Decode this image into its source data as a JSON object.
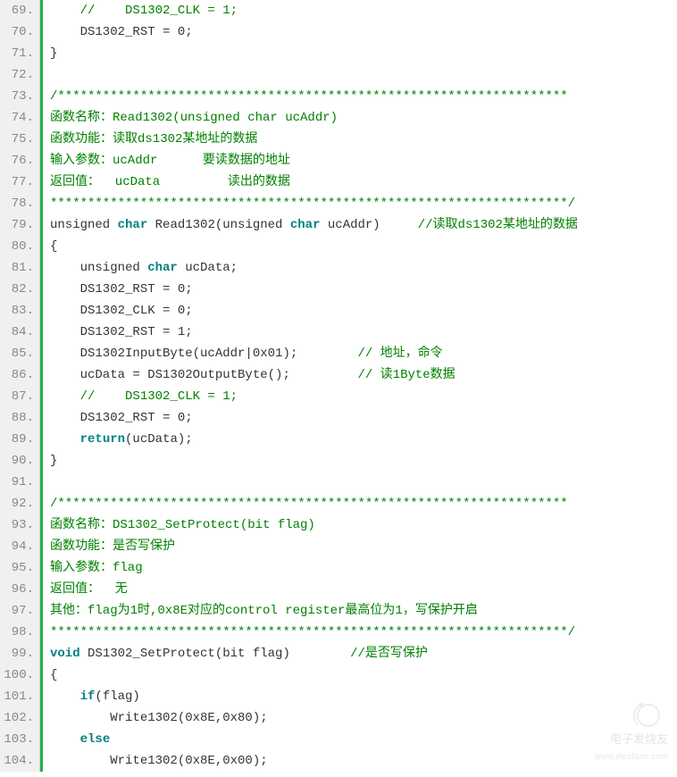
{
  "editor": {
    "startLine": 69,
    "endLine": 104,
    "background": "#ffffff",
    "gutterBackground": "#f0f0f0",
    "greenBar": "#22b14c",
    "colors": {
      "comment": "#008000",
      "keyword": "#008080",
      "plain": "#333333"
    },
    "fontSize": 14,
    "lineHeight": 24,
    "lines": [
      {
        "n": 69,
        "segs": [
          {
            "t": "//    DS1302_CLK = 1;",
            "c": "comment",
            "indent": 4
          }
        ]
      },
      {
        "n": 70,
        "segs": [
          {
            "t": "    DS1302_RST = 0;",
            "c": "plain"
          }
        ]
      },
      {
        "n": 71,
        "segs": [
          {
            "t": "}",
            "c": "plain"
          }
        ]
      },
      {
        "n": 72,
        "segs": [
          {
            "t": " ",
            "c": "plain"
          }
        ]
      },
      {
        "n": 73,
        "segs": [
          {
            "t": "/********************************************************************",
            "c": "comment"
          }
        ]
      },
      {
        "n": 74,
        "segs": [
          {
            "t": "函数名称：Read1302(unsigned char ucAddr)",
            "c": "comment"
          }
        ]
      },
      {
        "n": 75,
        "segs": [
          {
            "t": "函数功能：读取ds1302某地址的数据",
            "c": "comment"
          }
        ]
      },
      {
        "n": 76,
        "segs": [
          {
            "t": "输入参数：ucAddr      要读数据的地址",
            "c": "comment"
          }
        ]
      },
      {
        "n": 77,
        "segs": [
          {
            "t": "返回值：  ucData         读出的数据",
            "c": "comment"
          }
        ]
      },
      {
        "n": 78,
        "segs": [
          {
            "t": "*********************************************************************/",
            "c": "comment"
          }
        ]
      },
      {
        "n": 79,
        "segs": [
          {
            "t": "unsigned ",
            "c": "plain"
          },
          {
            "t": "char",
            "c": "keyword"
          },
          {
            "t": " Read1302(unsigned ",
            "c": "plain"
          },
          {
            "t": "char",
            "c": "keyword"
          },
          {
            "t": " ucAddr)     ",
            "c": "plain"
          },
          {
            "t": "//读取ds1302某地址的数据",
            "c": "comment"
          }
        ]
      },
      {
        "n": 80,
        "segs": [
          {
            "t": "{",
            "c": "plain"
          }
        ]
      },
      {
        "n": 81,
        "segs": [
          {
            "t": "    unsigned ",
            "c": "plain"
          },
          {
            "t": "char",
            "c": "keyword"
          },
          {
            "t": " ucData;",
            "c": "plain"
          }
        ]
      },
      {
        "n": 82,
        "segs": [
          {
            "t": "    DS1302_RST = 0;",
            "c": "plain"
          }
        ]
      },
      {
        "n": 83,
        "segs": [
          {
            "t": "    DS1302_CLK = 0;",
            "c": "plain"
          }
        ]
      },
      {
        "n": 84,
        "segs": [
          {
            "t": "    DS1302_RST = 1;",
            "c": "plain"
          }
        ]
      },
      {
        "n": 85,
        "segs": [
          {
            "t": "    DS1302InputByte(ucAddr|0x01);        ",
            "c": "plain"
          },
          {
            "t": "// 地址，命令",
            "c": "comment"
          }
        ]
      },
      {
        "n": 86,
        "segs": [
          {
            "t": "    ucData = DS1302OutputByte();         ",
            "c": "plain"
          },
          {
            "t": "// 读1Byte数据",
            "c": "comment"
          }
        ]
      },
      {
        "n": 87,
        "segs": [
          {
            "t": "//    DS1302_CLK = 1;",
            "c": "comment",
            "indent": 4
          }
        ]
      },
      {
        "n": 88,
        "segs": [
          {
            "t": "    DS1302_RST = 0;",
            "c": "plain"
          }
        ]
      },
      {
        "n": 89,
        "segs": [
          {
            "t": "    ",
            "c": "plain"
          },
          {
            "t": "return",
            "c": "keyword"
          },
          {
            "t": "(ucData);",
            "c": "plain"
          }
        ]
      },
      {
        "n": 90,
        "segs": [
          {
            "t": "}",
            "c": "plain"
          }
        ]
      },
      {
        "n": 91,
        "segs": [
          {
            "t": " ",
            "c": "plain"
          }
        ]
      },
      {
        "n": 92,
        "segs": [
          {
            "t": "/********************************************************************",
            "c": "comment"
          }
        ]
      },
      {
        "n": 93,
        "segs": [
          {
            "t": "函数名称：DS1302_SetProtect(bit flag)",
            "c": "comment"
          }
        ]
      },
      {
        "n": 94,
        "segs": [
          {
            "t": "函数功能：是否写保护",
            "c": "comment"
          }
        ]
      },
      {
        "n": 95,
        "segs": [
          {
            "t": "输入参数：flag",
            "c": "comment"
          }
        ]
      },
      {
        "n": 96,
        "segs": [
          {
            "t": "返回值：  无",
            "c": "comment"
          }
        ]
      },
      {
        "n": 97,
        "segs": [
          {
            "t": "其他：flag为1时,0x8E对应的control register最高位为1，写保护开启",
            "c": "comment"
          }
        ]
      },
      {
        "n": 98,
        "segs": [
          {
            "t": "*********************************************************************/",
            "c": "comment"
          }
        ]
      },
      {
        "n": 99,
        "segs": [
          {
            "t": "void",
            "c": "keyword"
          },
          {
            "t": " DS1302_SetProtect(bit flag)        ",
            "c": "plain"
          },
          {
            "t": "//是否写保护",
            "c": "comment"
          }
        ]
      },
      {
        "n": 100,
        "segs": [
          {
            "t": "{",
            "c": "plain"
          }
        ]
      },
      {
        "n": 101,
        "segs": [
          {
            "t": "    ",
            "c": "plain"
          },
          {
            "t": "if",
            "c": "keyword"
          },
          {
            "t": "(flag)",
            "c": "plain"
          }
        ]
      },
      {
        "n": 102,
        "segs": [
          {
            "t": "        Write1302(0x8E,0x80);",
            "c": "plain"
          }
        ]
      },
      {
        "n": 103,
        "segs": [
          {
            "t": "    ",
            "c": "plain"
          },
          {
            "t": "else",
            "c": "keyword"
          }
        ]
      },
      {
        "n": 104,
        "segs": [
          {
            "t": "        Write1302(0x8E,0x00);",
            "c": "plain"
          }
        ]
      }
    ]
  },
  "watermark": {
    "brand": "电子发烧友",
    "url": "www.elecfans.com"
  }
}
